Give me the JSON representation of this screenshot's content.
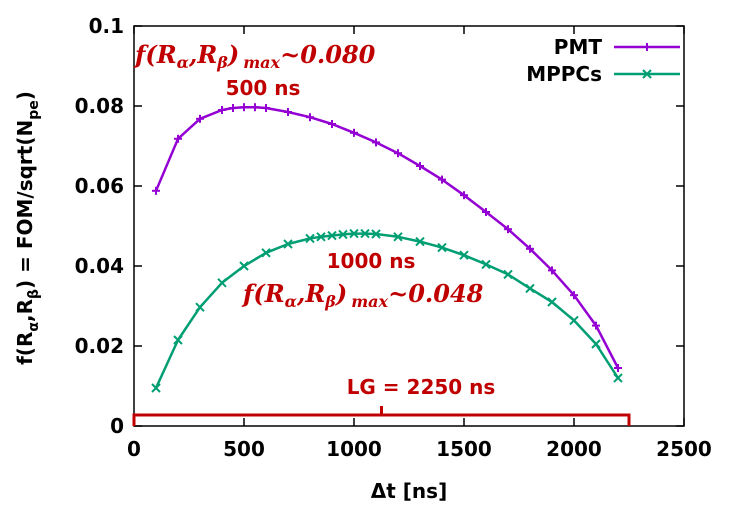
{
  "chart_data": {
    "type": "line",
    "xlabel": "Δt [ns]",
    "ylabel_parts": {
      "prefix": "f(R",
      "alpha": "α",
      "sep": ",R",
      "beta": "β",
      "mid": ") = FOM/sqrt(N",
      "sub": "pe",
      "end": ")"
    },
    "xlim": [
      0,
      2500
    ],
    "ylim": [
      0,
      0.1
    ],
    "xticks": [
      0,
      500,
      1000,
      1500,
      2000,
      2500
    ],
    "yticks": [
      0,
      0.02,
      0.04,
      0.06,
      0.08,
      0.1
    ],
    "xtick_labels": [
      "0",
      "500",
      "1000",
      "1500",
      "2000",
      "2500"
    ],
    "ytick_labels": [
      "0",
      "0.02",
      "0.04",
      "0.06",
      "0.08",
      "0.1"
    ],
    "legend_position": "top-right",
    "series": [
      {
        "name": "PMT",
        "color": "#9400d3",
        "marker": "plus",
        "x": [
          100,
          200,
          300,
          400,
          450,
          500,
          550,
          600,
          700,
          800,
          900,
          1000,
          1100,
          1200,
          1300,
          1400,
          1500,
          1600,
          1700,
          1800,
          1900,
          2000,
          2100,
          2200
        ],
        "values": [
          0.0588,
          0.0718,
          0.0768,
          0.079,
          0.0795,
          0.0797,
          0.0797,
          0.0795,
          0.0785,
          0.0772,
          0.0755,
          0.0733,
          0.0709,
          0.0682,
          0.065,
          0.0616,
          0.0577,
          0.0535,
          0.0492,
          0.0443,
          0.0389,
          0.0327,
          0.0251,
          0.0145
        ]
      },
      {
        "name": "MPPCs",
        "color": "#009e73",
        "marker": "cross",
        "x": [
          100,
          200,
          300,
          400,
          500,
          600,
          700,
          800,
          850,
          900,
          950,
          1000,
          1050,
          1100,
          1200,
          1300,
          1400,
          1500,
          1600,
          1700,
          1800,
          1900,
          2000,
          2100,
          2200
        ],
        "values": [
          0.0095,
          0.0215,
          0.0297,
          0.0358,
          0.04,
          0.0433,
          0.0455,
          0.0469,
          0.0473,
          0.0476,
          0.0479,
          0.0481,
          0.0481,
          0.048,
          0.0473,
          0.0461,
          0.0446,
          0.0427,
          0.0404,
          0.0379,
          0.0344,
          0.031,
          0.0264,
          0.0205,
          0.012
        ]
      }
    ],
    "annotations": {
      "pmt_formula": {
        "f": "f",
        "open": "(",
        "r1": "R",
        "s1": "α",
        "comma": ",",
        "r2": "R",
        "s2": "β",
        "close": ")",
        "sub": "max",
        "val": "~0.080"
      },
      "pmt_time": "500 ns",
      "mppc_formula": {
        "f": "f",
        "open": "(",
        "r1": "R",
        "s1": "α",
        "comma": ",",
        "r2": "R",
        "s2": "β",
        "close": ")",
        "sub": "max",
        "val": "~0.048"
      },
      "mppc_time": "1000 ns",
      "lg_label": "LG = 2250 ns",
      "lg_range": [
        0,
        2250
      ],
      "color": "#c00000"
    }
  }
}
